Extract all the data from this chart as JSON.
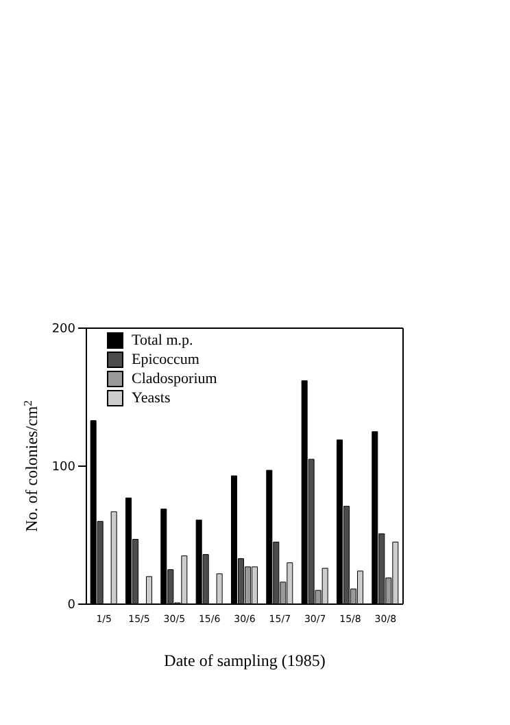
{
  "chart_data": {
    "type": "bar",
    "xlabel": "Date of sampling (1985)",
    "ylabel": "No. of colonies/cm$^{2}$",
    "categories": [
      "1/5",
      "15/5",
      "30/5",
      "15/6",
      "30/6",
      "15/7",
      "30/7",
      "15/8",
      "30/8"
    ],
    "series": [
      {
        "name": "Total m.p.",
        "color": "#000000",
        "values": [
          133,
          77,
          69,
          61,
          93,
          97,
          162,
          119,
          125
        ]
      },
      {
        "name": "Epicoccum",
        "color": "#4d4d4d",
        "values": [
          60,
          47,
          25,
          36,
          33,
          45,
          105,
          71,
          51
        ]
      },
      {
        "name": "Cladosporium",
        "color": "#999999",
        "values": [
          0,
          0,
          1,
          0,
          27,
          16,
          10,
          11,
          19
        ]
      },
      {
        "name": "Yeasts",
        "color": "#cccccc",
        "values": [
          67,
          20,
          35,
          22,
          27,
          30,
          26,
          24,
          45
        ]
      }
    ],
    "ylim": [
      0,
      200
    ],
    "yticks": [
      0,
      100,
      200
    ],
    "grid": false,
    "legend": "top left"
  }
}
